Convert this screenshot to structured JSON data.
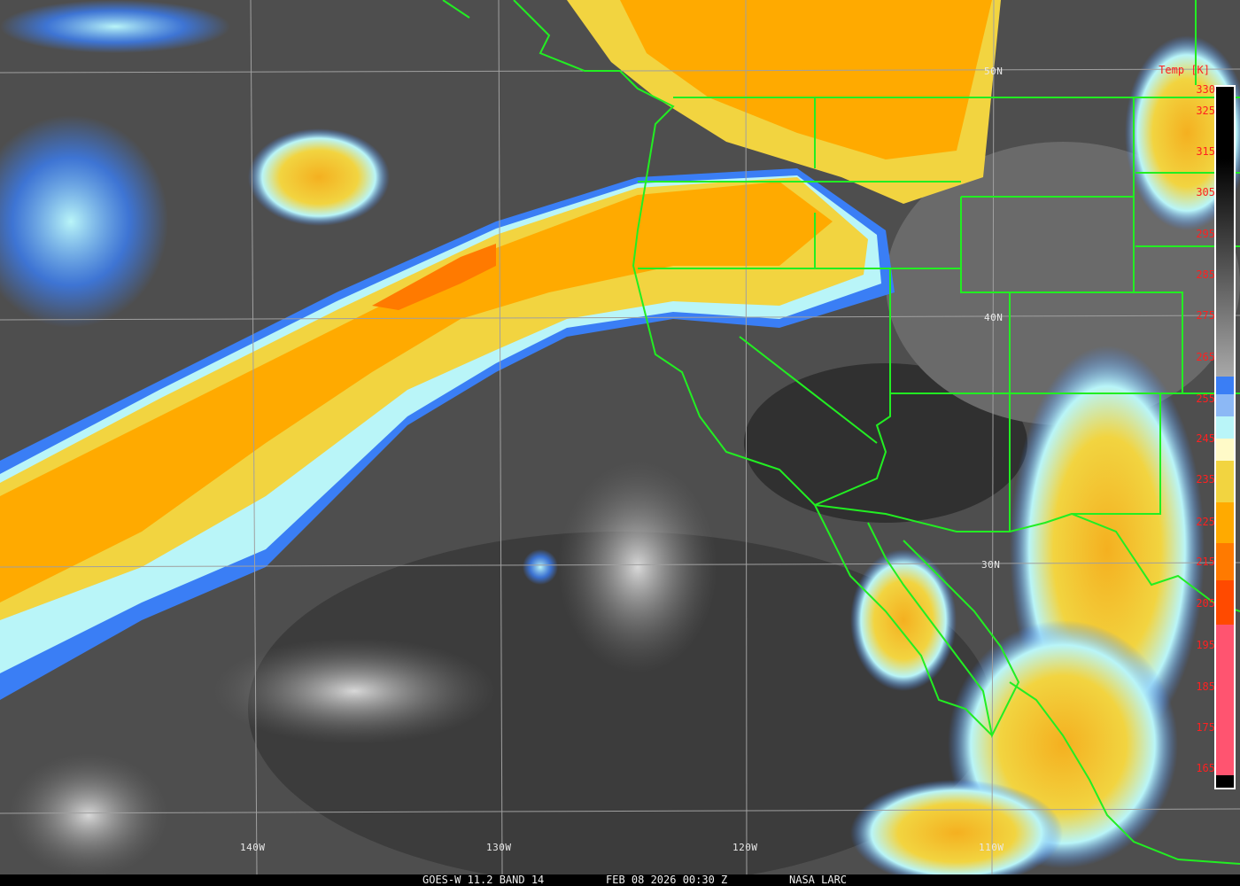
{
  "caption": {
    "satellite": "GOES-W 11.2 BAND 14",
    "datetime": "FEB 08 2026 00:30 Z",
    "source": "NASA LARC"
  },
  "grid": {
    "latitudes": [
      "50N",
      "40N",
      "30N"
    ],
    "longitudes": [
      "140W",
      "130W",
      "120W",
      "110W"
    ]
  },
  "colorbar": {
    "title": "Temp [K]",
    "ticks": [
      "330",
      "325",
      "315",
      "305",
      "295",
      "285",
      "275",
      "265",
      "255",
      "245",
      "235",
      "225",
      "215",
      "205",
      "195",
      "185",
      "175",
      "165"
    ],
    "colors": {
      "warm": "#000000",
      "mid": "#9a9a9a",
      "blue": "#3a7ef5",
      "light_blue": "#8cb8f5",
      "cyan": "#b9f5f8",
      "pale_yellow": "#fffac8",
      "yellow": "#f2d440",
      "orange": "#ffaa00",
      "dark_orange": "#ff7a00",
      "red_orange": "#ff4a00",
      "pink": "#ff5470"
    }
  },
  "overlay_color": "#22ee22",
  "grid_color": "#a0a0a0"
}
